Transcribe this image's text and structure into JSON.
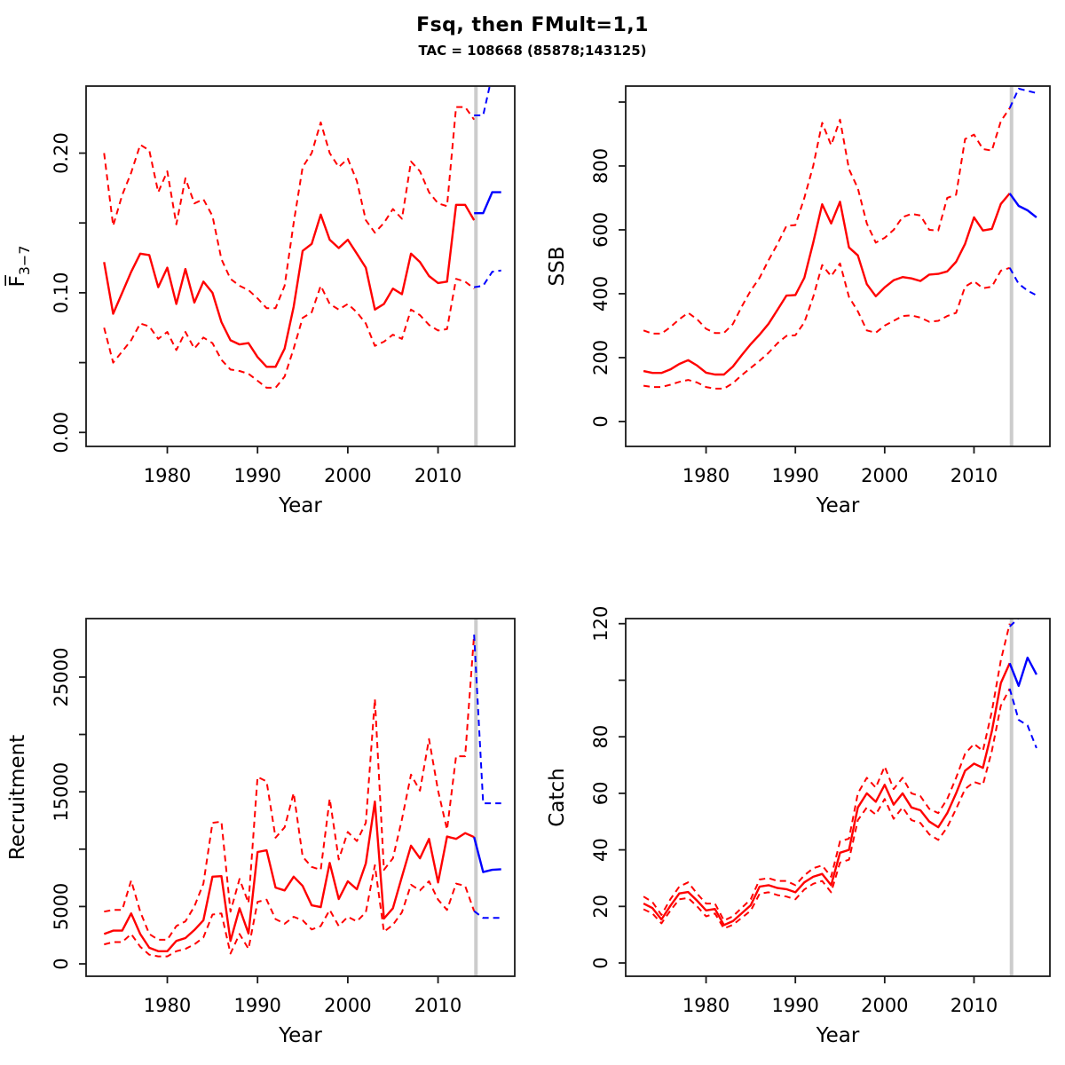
{
  "title": "Fsq, then FMult=1,1",
  "subtitle": "TAC = 108668 (85878;143125)",
  "colors": {
    "historic": "#ff0000",
    "forecast": "#0000ff",
    "divider": "#cccccc",
    "box": "#1a1a1a",
    "text": "#000000"
  },
  "chart_data": {
    "type": "line",
    "x_label": "Year",
    "years_hist": [
      1973,
      1974,
      1975,
      1976,
      1977,
      1978,
      1979,
      1980,
      1981,
      1982,
      1983,
      1984,
      1985,
      1986,
      1987,
      1988,
      1989,
      1990,
      1991,
      1992,
      1993,
      1994,
      1995,
      1996,
      1997,
      1998,
      1999,
      2000,
      2001,
      2002,
      2003,
      2004,
      2005,
      2006,
      2007,
      2008,
      2009,
      2010,
      2011,
      2012,
      2013,
      2014
    ],
    "years_fcst": [
      2014,
      2015,
      2016,
      2017
    ],
    "xlim": [
      1971.0,
      2018.5
    ],
    "xticks": [
      {
        "v": 1980,
        "label": "1980"
      },
      {
        "v": 1990,
        "label": "1990"
      },
      {
        "v": 2000,
        "label": "2000"
      },
      {
        "v": 2010,
        "label": "2010"
      }
    ],
    "divider_x": 2014.2,
    "legend": "none",
    "grid": false,
    "panels": [
      {
        "name": "f",
        "ylabel": "F̅",
        "ylabel_sub": "3−7",
        "xlabel": "Year",
        "ylim": [
          -0.01,
          0.248
        ],
        "yticks": [
          {
            "v": 0.0,
            "label": "0.00"
          },
          {
            "v": 0.05,
            "label": ""
          },
          {
            "v": 0.1,
            "label": "0.10"
          },
          {
            "v": 0.15,
            "label": ""
          },
          {
            "v": 0.2,
            "label": "0.20"
          }
        ],
        "median_hist": [
          0.122,
          0.085,
          0.1,
          0.115,
          0.128,
          0.127,
          0.104,
          0.118,
          0.092,
          0.117,
          0.093,
          0.108,
          0.1,
          0.079,
          0.066,
          0.063,
          0.064,
          0.054,
          0.047,
          0.047,
          0.06,
          0.09,
          0.13,
          0.135,
          0.156,
          0.138,
          0.132,
          0.138,
          0.128,
          0.118,
          0.088,
          0.092,
          0.103,
          0.099,
          0.128,
          0.122,
          0.112,
          0.107,
          0.108,
          0.163,
          0.163,
          0.152
        ],
        "upper_hist": [
          0.2,
          0.148,
          0.17,
          0.186,
          0.206,
          0.202,
          0.172,
          0.187,
          0.149,
          0.182,
          0.164,
          0.167,
          0.155,
          0.124,
          0.11,
          0.105,
          0.102,
          0.096,
          0.089,
          0.089,
          0.105,
          0.15,
          0.19,
          0.2,
          0.222,
          0.2,
          0.19,
          0.196,
          0.18,
          0.152,
          0.143,
          0.15,
          0.16,
          0.153,
          0.194,
          0.187,
          0.172,
          0.164,
          0.162,
          0.233,
          0.233,
          0.224
        ],
        "lower_hist": [
          0.075,
          0.05,
          0.058,
          0.066,
          0.078,
          0.076,
          0.067,
          0.072,
          0.059,
          0.072,
          0.06,
          0.068,
          0.064,
          0.052,
          0.045,
          0.044,
          0.042,
          0.037,
          0.032,
          0.032,
          0.04,
          0.06,
          0.082,
          0.086,
          0.105,
          0.092,
          0.088,
          0.092,
          0.086,
          0.078,
          0.062,
          0.065,
          0.07,
          0.067,
          0.088,
          0.084,
          0.077,
          0.073,
          0.074,
          0.11,
          0.108,
          0.103
        ],
        "median_fcst": [
          0.157,
          0.157,
          0.172,
          0.172
        ],
        "upper_fcst": [
          0.227,
          0.227,
          0.256,
          0.268
        ],
        "lower_fcst": [
          0.104,
          0.105,
          0.115,
          0.116
        ]
      },
      {
        "name": "ssb",
        "ylabel": "SSB",
        "xlabel": "Year",
        "ylim": [
          -78,
          1050
        ],
        "yticks": [
          {
            "v": 0,
            "label": "0"
          },
          {
            "v": 200,
            "label": "200"
          },
          {
            "v": 400,
            "label": "400"
          },
          {
            "v": 600,
            "label": "600"
          },
          {
            "v": 800,
            "label": "800"
          },
          {
            "v": 1000,
            "label": ""
          }
        ],
        "median_hist": [
          158,
          152,
          152,
          163,
          180,
          192,
          175,
          153,
          147,
          147,
          172,
          208,
          242,
          272,
          306,
          350,
          394,
          396,
          450,
          560,
          680,
          620,
          688,
          545,
          520,
          430,
          392,
          420,
          442,
          452,
          448,
          440,
          460,
          462,
          470,
          500,
          556,
          639,
          598,
          603,
          681,
          714
        ],
        "upper_hist": [
          285,
          275,
          275,
          295,
          320,
          340,
          320,
          290,
          277,
          277,
          305,
          360,
          410,
          450,
          505,
          556,
          612,
          615,
          700,
          800,
          935,
          865,
          945,
          790,
          730,
          620,
          560,
          575,
          600,
          640,
          650,
          645,
          600,
          598,
          700,
          710,
          884,
          898,
          853,
          848,
          940,
          981
        ],
        "lower_hist": [
          112,
          108,
          108,
          115,
          124,
          130,
          122,
          108,
          103,
          103,
          120,
          145,
          168,
          190,
          215,
          245,
          268,
          270,
          310,
          390,
          490,
          455,
          495,
          390,
          345,
          285,
          278,
          300,
          315,
          330,
          332,
          325,
          312,
          315,
          330,
          340,
          422,
          439,
          417,
          422,
          472,
          481
        ],
        "median_fcst": [
          714,
          675,
          661,
          639
        ],
        "upper_fcst": [
          981,
          1042,
          1035,
          1028
        ],
        "lower_fcst": [
          481,
          431,
          410,
          395
        ]
      },
      {
        "name": "recruitment",
        "ylabel": "Recruitment",
        "xlabel": "Year",
        "ylim": [
          -1080,
          30100
        ],
        "yticks": [
          {
            "v": 0,
            "label": "0"
          },
          {
            "v": 5000,
            "label": "5000"
          },
          {
            "v": 10000,
            "label": ""
          },
          {
            "v": 15000,
            "label": "15000"
          },
          {
            "v": 20000,
            "label": ""
          },
          {
            "v": 25000,
            "label": "25000"
          }
        ],
        "median_hist": [
          2600,
          2900,
          2900,
          4400,
          2600,
          1400,
          1100,
          1100,
          2000,
          2250,
          2950,
          3800,
          7600,
          7650,
          2000,
          4850,
          2650,
          9750,
          9900,
          6650,
          6400,
          7600,
          6800,
          5100,
          4950,
          8800,
          5650,
          7200,
          6500,
          8750,
          14150,
          3950,
          4850,
          7600,
          10300,
          9200,
          10900,
          7100,
          11100,
          10900,
          11400,
          11050
        ],
        "upper_hist": [
          4550,
          4700,
          4700,
          7270,
          4550,
          2600,
          2100,
          2100,
          3300,
          3700,
          5000,
          7000,
          12300,
          12400,
          4550,
          7400,
          5300,
          16300,
          15900,
          11000,
          11900,
          14900,
          9350,
          8450,
          8200,
          14400,
          9100,
          11500,
          10700,
          12300,
          23100,
          8200,
          9200,
          12600,
          16500,
          15100,
          19600,
          15100,
          11700,
          18100,
          18100,
          28700
        ],
        "lower_hist": [
          1700,
          1900,
          1900,
          2600,
          1500,
          800,
          650,
          650,
          1100,
          1300,
          1700,
          2300,
          4300,
          4400,
          900,
          2600,
          1300,
          5400,
          5600,
          3900,
          3500,
          4100,
          3800,
          3000,
          3300,
          4700,
          3300,
          4100,
          3700,
          4500,
          8600,
          2800,
          3400,
          4500,
          6900,
          6400,
          7200,
          5600,
          4700,
          7000,
          6800,
          4600
        ],
        "median_fcst": [
          11050,
          8000,
          8200,
          8250
        ],
        "upper_fcst": [
          28700,
          14000,
          14000,
          14000
        ],
        "lower_fcst": [
          4600,
          4000,
          4000,
          4000
        ]
      },
      {
        "name": "catch",
        "ylabel": "Catch",
        "xlabel": "Year",
        "ylim": [
          -4.7,
          121.8
        ],
        "yticks": [
          {
            "v": 0,
            "label": "0"
          },
          {
            "v": 20,
            "label": "20"
          },
          {
            "v": 40,
            "label": "40"
          },
          {
            "v": 60,
            "label": "60"
          },
          {
            "v": 80,
            "label": "80"
          },
          {
            "v": 100,
            "label": ""
          },
          {
            "v": 120,
            "label": "120"
          }
        ],
        "median_hist": [
          21,
          19.4,
          15.4,
          20.2,
          24.6,
          25.1,
          22,
          18.6,
          19.1,
          13.4,
          14.8,
          17.6,
          20.4,
          27,
          27.5,
          26.5,
          26.1,
          25,
          28.5,
          30.5,
          31.5,
          27.5,
          39,
          40,
          55,
          60,
          57,
          63,
          56,
          60,
          55,
          54,
          50,
          48,
          53,
          60,
          68,
          70.5,
          69,
          82,
          99,
          106
        ],
        "upper_hist": [
          23.5,
          21.5,
          17,
          22.5,
          27,
          28.5,
          24.5,
          21,
          21,
          15,
          16.5,
          19.5,
          22.5,
          29.5,
          30,
          29,
          29,
          27.5,
          31,
          33.5,
          34.5,
          30.5,
          43,
          44,
          60,
          65.5,
          62,
          69.5,
          61.5,
          65.5,
          60,
          59,
          54.5,
          53,
          58,
          65.5,
          74,
          77.5,
          75,
          89,
          107,
          120
        ],
        "lower_hist": [
          19,
          17.5,
          14,
          18.5,
          22.5,
          23,
          20,
          16.5,
          17.5,
          12.2,
          13.5,
          16,
          18.5,
          24.5,
          25,
          24,
          23.5,
          22.5,
          26,
          28,
          29,
          25,
          35.5,
          36.5,
          50.5,
          55,
          52.5,
          58,
          51,
          55,
          50.5,
          49.5,
          45.5,
          43.5,
          48,
          54.5,
          61.5,
          64,
          63,
          75,
          91,
          97
        ],
        "median_fcst": [
          106,
          98,
          108,
          102
        ],
        "upper_fcst": [
          119,
          122,
          126,
          129
        ],
        "lower_fcst": [
          97,
          86,
          84,
          76
        ]
      }
    ]
  }
}
